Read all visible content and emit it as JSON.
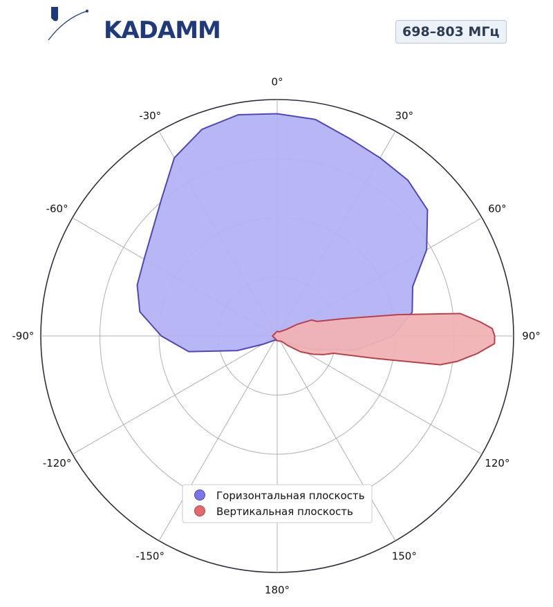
{
  "brand": {
    "logo_text": "KADAMM",
    "logo_color": "#1f3a7a"
  },
  "badge": {
    "text": "698–803 МГц"
  },
  "chart_data": {
    "type": "polar-area",
    "theta_unit": "deg",
    "theta_zero": "top",
    "theta_direction": "clockwise",
    "r_range": [
      0,
      1
    ],
    "r_grid": [
      0.25,
      0.5,
      0.75,
      1.0
    ],
    "grid": true,
    "angle_tick_labels": [
      {
        "deg": 0,
        "label": "0°"
      },
      {
        "deg": 30,
        "label": "30°"
      },
      {
        "deg": 60,
        "label": "60°"
      },
      {
        "deg": 90,
        "label": "90°"
      },
      {
        "deg": 120,
        "label": "120°"
      },
      {
        "deg": 150,
        "label": "150°"
      },
      {
        "deg": 180,
        "label": "180°"
      },
      {
        "deg": -150,
        "label": "-150°"
      },
      {
        "deg": -120,
        "label": "-120°"
      },
      {
        "deg": -90,
        "label": "-90°"
      },
      {
        "deg": -60,
        "label": "-60°"
      },
      {
        "deg": -30,
        "label": "-30°"
      }
    ],
    "legend_position": "bottom-center",
    "series": [
      {
        "name": "Горизонтальная плоскость",
        "color": "#7b76e8",
        "fill": "#b4b3f4",
        "stroke": "#4e46b9",
        "points": [
          [
            0,
            0.94
          ],
          [
            10,
            0.93
          ],
          [
            20,
            0.89
          ],
          [
            30,
            0.87
          ],
          [
            40,
            0.86
          ],
          [
            50,
            0.83
          ],
          [
            60,
            0.73
          ],
          [
            70,
            0.61
          ],
          [
            80,
            0.58
          ],
          [
            90,
            0.49
          ],
          [
            100,
            0.34
          ],
          [
            110,
            0.17
          ],
          [
            120,
            0.08
          ],
          [
            135,
            0.03
          ],
          [
            150,
            0.02
          ],
          [
            180,
            0.02
          ],
          [
            210,
            0.02
          ],
          [
            225,
            0.03
          ],
          [
            240,
            0.07
          ],
          [
            250,
            0.18
          ],
          [
            260,
            0.38
          ],
          [
            270,
            0.49
          ],
          [
            280,
            0.59
          ],
          [
            290,
            0.63
          ],
          [
            300,
            0.65
          ],
          [
            310,
            0.69
          ],
          [
            320,
            0.76
          ],
          [
            330,
            0.87
          ],
          [
            340,
            0.93
          ],
          [
            350,
            0.95
          ],
          [
            360,
            0.94
          ]
        ]
      },
      {
        "name": "Вертикальная плоскость",
        "color": "#e06a6e",
        "fill": "#f0b2b4",
        "stroke": "#b8404a",
        "points": [
          [
            0,
            0.02
          ],
          [
            30,
            0.02
          ],
          [
            55,
            0.05
          ],
          [
            60,
            0.1
          ],
          [
            65,
            0.16
          ],
          [
            70,
            0.18
          ],
          [
            75,
            0.28
          ],
          [
            80,
            0.52
          ],
          [
            83,
            0.78
          ],
          [
            86,
            0.86
          ],
          [
            88,
            0.91
          ],
          [
            90,
            0.92
          ],
          [
            92,
            0.92
          ],
          [
            95,
            0.85
          ],
          [
            98,
            0.77
          ],
          [
            100,
            0.7
          ],
          [
            103,
            0.42
          ],
          [
            107,
            0.25
          ],
          [
            112,
            0.21
          ],
          [
            117,
            0.17
          ],
          [
            124,
            0.12
          ],
          [
            132,
            0.06
          ],
          [
            140,
            0.03
          ],
          [
            180,
            0.02
          ],
          [
            270,
            0.02
          ],
          [
            360,
            0.02
          ]
        ]
      }
    ]
  }
}
